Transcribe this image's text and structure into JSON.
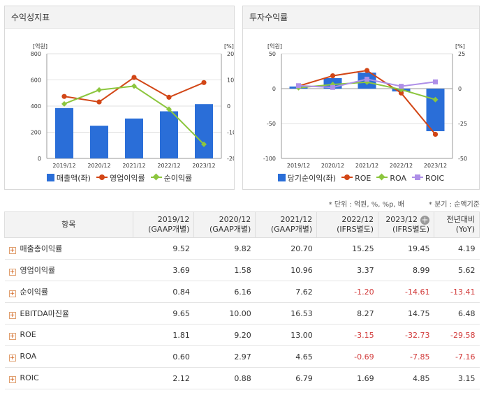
{
  "left_panel": {
    "title": "수익성지표"
  },
  "right_panel": {
    "title": "투자수익률"
  },
  "chart_data": [
    {
      "type": "bar",
      "title": "수익성지표",
      "categories": [
        "2019/12",
        "2020/12",
        "2021/12",
        "2022/12",
        "2023/12"
      ],
      "left_unit": "[억원]",
      "right_unit": "[%]",
      "ylim_left": [
        0,
        800
      ],
      "ylim_right": [
        -20,
        20
      ],
      "left_ticks": [
        0,
        200,
        400,
        600,
        800
      ],
      "right_ticks": [
        -20,
        -10,
        0,
        10,
        20
      ],
      "series": [
        {
          "name": "매출액(좌)",
          "axis": "left",
          "kind": "bar",
          "color": "#2a6ed8",
          "values": [
            385,
            250,
            305,
            360,
            415
          ]
        },
        {
          "name": "영업이익률",
          "axis": "right",
          "kind": "line",
          "marker": "circle",
          "color": "#d24616",
          "values": [
            3.69,
            1.58,
            10.96,
            3.37,
            8.99
          ]
        },
        {
          "name": "순이익률",
          "axis": "right",
          "kind": "line",
          "marker": "diamond",
          "color": "#8cc63e",
          "values": [
            0.84,
            6.16,
            7.62,
            -1.2,
            -14.61
          ]
        }
      ]
    },
    {
      "type": "bar",
      "title": "투자수익률",
      "categories": [
        "2019/12",
        "2020/12",
        "2021/12",
        "2022/12",
        "2023/12"
      ],
      "left_unit": "[억원]",
      "right_unit": "[%]",
      "ylim_left": [
        -100,
        50
      ],
      "ylim_right": [
        -50,
        25
      ],
      "left_ticks": [
        -100,
        -50,
        0,
        50
      ],
      "right_ticks": [
        -50,
        -25,
        0,
        25
      ],
      "series": [
        {
          "name": "당기순이익(좌)",
          "axis": "left",
          "kind": "bar",
          "color": "#2a6ed8",
          "values": [
            3,
            15,
            23,
            -4,
            -61
          ]
        },
        {
          "name": "ROE",
          "axis": "right",
          "kind": "line",
          "marker": "circle",
          "color": "#d24616",
          "values": [
            1.81,
            9.2,
            13.0,
            -3.15,
            -32.73
          ]
        },
        {
          "name": "ROA",
          "axis": "right",
          "kind": "line",
          "marker": "diamond",
          "color": "#8cc63e",
          "values": [
            0.6,
            2.97,
            4.65,
            -0.69,
            -7.85
          ]
        },
        {
          "name": "ROIC",
          "axis": "right",
          "kind": "line",
          "marker": "square",
          "color": "#ae8fe8",
          "values": [
            2.12,
            0.88,
            6.79,
            1.69,
            4.85
          ]
        }
      ]
    }
  ],
  "notes": {
    "unit": "* 단위 : 억원, %, %p, 배",
    "quarter": "* 분기 : 순액기준"
  },
  "table": {
    "item_header": "항목",
    "columns": [
      {
        "year": "2019/12",
        "basis": "(GAAP개별)"
      },
      {
        "year": "2020/12",
        "basis": "(GAAP개별)"
      },
      {
        "year": "2021/12",
        "basis": "(GAAP개별)"
      },
      {
        "year": "2022/12",
        "basis": "(IFRS별도)"
      },
      {
        "year": "2023/12",
        "basis": "(IFRS별도)"
      },
      {
        "year": "전년대비",
        "basis": "(YoY)"
      }
    ],
    "rows": [
      {
        "label": "매출총이익률",
        "values": [
          "9.52",
          "9.82",
          "20.70",
          "15.25",
          "19.45",
          "4.19"
        ]
      },
      {
        "label": "영업이익률",
        "values": [
          "3.69",
          "1.58",
          "10.96",
          "3.37",
          "8.99",
          "5.62"
        ]
      },
      {
        "label": "순이익률",
        "values": [
          "0.84",
          "6.16",
          "7.62",
          "-1.20",
          "-14.61",
          "-13.41"
        ]
      },
      {
        "label": "EBITDA마진율",
        "values": [
          "9.65",
          "10.00",
          "16.53",
          "8.27",
          "14.75",
          "6.48"
        ]
      },
      {
        "label": "ROE",
        "values": [
          "1.81",
          "9.20",
          "13.00",
          "-3.15",
          "-32.73",
          "-29.58"
        ]
      },
      {
        "label": "ROA",
        "values": [
          "0.60",
          "2.97",
          "4.65",
          "-0.69",
          "-7.85",
          "-7.16"
        ]
      },
      {
        "label": "ROIC",
        "values": [
          "2.12",
          "0.88",
          "6.79",
          "1.69",
          "4.85",
          "3.15"
        ]
      }
    ]
  }
}
